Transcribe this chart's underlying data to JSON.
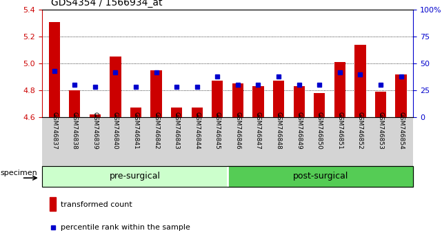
{
  "title": "GDS4354 / 1566934_at",
  "samples": [
    "GSM746837",
    "GSM746838",
    "GSM746839",
    "GSM746840",
    "GSM746841",
    "GSM746842",
    "GSM746843",
    "GSM746844",
    "GSM746845",
    "GSM746846",
    "GSM746847",
    "GSM746848",
    "GSM746849",
    "GSM746850",
    "GSM746851",
    "GSM746852",
    "GSM746853",
    "GSM746854"
  ],
  "bar_values": [
    5.31,
    4.8,
    4.62,
    5.05,
    4.67,
    4.95,
    4.67,
    4.67,
    4.87,
    4.85,
    4.83,
    4.87,
    4.83,
    4.78,
    5.01,
    5.14,
    4.79,
    4.92
  ],
  "percentile_values": [
    43,
    30,
    28,
    42,
    28,
    42,
    28,
    28,
    38,
    30,
    30,
    38,
    30,
    30,
    42,
    40,
    30,
    38
  ],
  "ymin": 4.6,
  "ymax": 5.4,
  "yticks": [
    4.6,
    4.8,
    5.0,
    5.2,
    5.4
  ],
  "right_yticks": [
    0,
    25,
    50,
    75,
    100
  ],
  "right_yticklabels": [
    "0",
    "25",
    "50",
    "75",
    "100%"
  ],
  "group1_label": "pre-surgical",
  "group2_label": "post-surgical",
  "group1_count": 9,
  "group2_count": 9,
  "bar_color": "#cc0000",
  "square_color": "#0000cc",
  "bar_width": 0.55,
  "legend_bar_label": "transformed count",
  "legend_square_label": "percentile rank within the sample",
  "specimen_label": "specimen",
  "group1_bg": "#ccffcc",
  "group2_bg": "#55cc55",
  "xtick_bg": "#d4d4d4",
  "grid_color": "#000000",
  "left_spine_color": "#cc0000",
  "right_spine_color": "#0000cc"
}
